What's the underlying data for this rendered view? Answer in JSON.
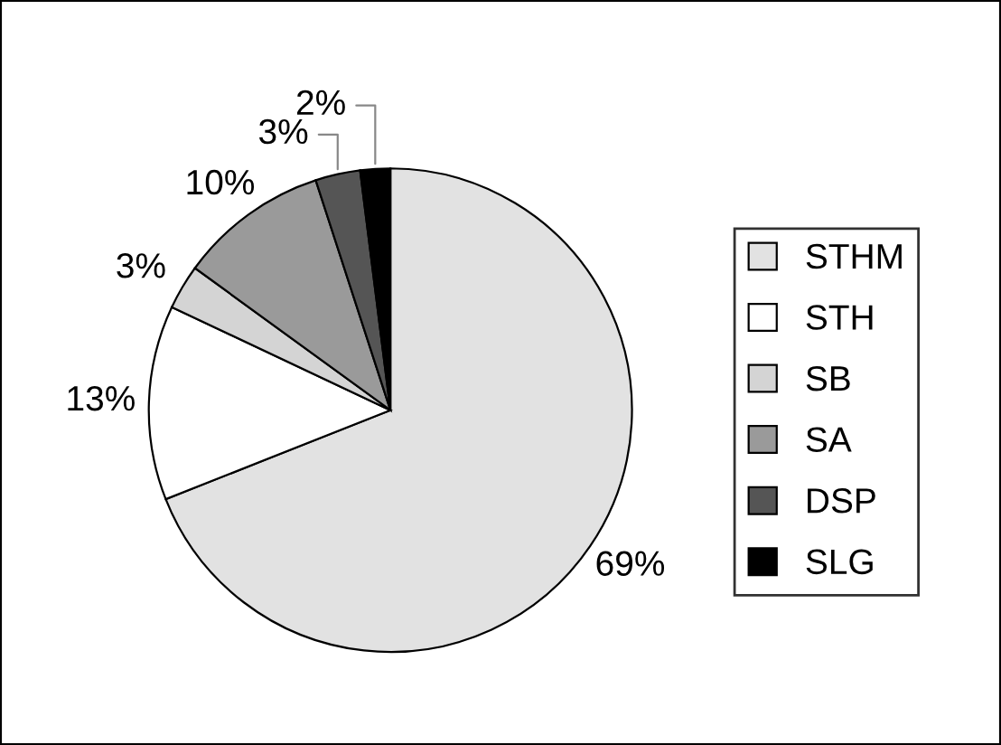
{
  "chart_data": {
    "type": "pie",
    "categories": [
      "STHM",
      "STH",
      "SB",
      "SA",
      "DSP",
      "SLG"
    ],
    "values": [
      69,
      13,
      3,
      10,
      3,
      2
    ],
    "colors": [
      "#e2e2e2",
      "#ffffff",
      "#d4d4d4",
      "#9a9a9a",
      "#555555",
      "#000000"
    ],
    "value_labels": [
      "69%",
      "13%",
      "3%",
      "10%",
      "3%",
      "2%"
    ],
    "legend": "right"
  }
}
